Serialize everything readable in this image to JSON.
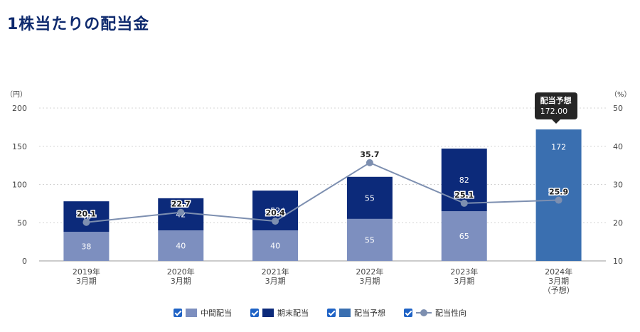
{
  "page": {
    "title": "1株当たりの配当金"
  },
  "chart_data": {
    "type": "bar",
    "categories": [
      [
        "2019年",
        "3月期"
      ],
      [
        "2020年",
        "3月期"
      ],
      [
        "2021年",
        "3月期"
      ],
      [
        "2022年",
        "3月期"
      ],
      [
        "2023年",
        "3月期"
      ],
      [
        "2024年",
        "3月期",
        "（予想）"
      ]
    ],
    "y_left": {
      "unit": "（円）",
      "ticks": [
        0,
        50,
        100,
        150,
        200
      ],
      "range": [
        0,
        200
      ]
    },
    "y_right": {
      "unit": "（%）",
      "ticks": [
        10,
        20,
        30,
        40,
        50
      ],
      "range": [
        10,
        50
      ]
    },
    "grid": true,
    "legend_position": "bottom",
    "series": [
      {
        "name": "中間配当",
        "kind": "bar",
        "color": "#7d8fbf",
        "values": [
          38,
          40,
          40,
          55,
          65,
          null
        ],
        "labels": [
          "38",
          "40",
          "40",
          "55",
          "65",
          ""
        ]
      },
      {
        "name": "期末配当",
        "kind": "bar",
        "color": "#0c2a7a",
        "values": [
          40,
          42,
          52,
          55,
          82,
          null
        ],
        "labels": [
          "40",
          "42",
          "52",
          "55",
          "82",
          ""
        ]
      },
      {
        "name": "配当予想",
        "kind": "bar",
        "color": "#3a6fb0",
        "values": [
          null,
          null,
          null,
          null,
          null,
          172
        ],
        "labels": [
          "",
          "",
          "",
          "",
          "",
          "172"
        ]
      },
      {
        "name": "配当性向",
        "kind": "line",
        "axis": "right",
        "color": "#7d8fb0",
        "values": [
          20.1,
          22.7,
          20.4,
          35.7,
          25.1,
          25.9
        ],
        "labels": [
          "20.1",
          "22.7",
          "20.4",
          "35.7",
          "25.1",
          "25.9"
        ]
      }
    ],
    "tooltip": {
      "title": "配当予想",
      "value": "172.00",
      "category_index": 5
    }
  }
}
